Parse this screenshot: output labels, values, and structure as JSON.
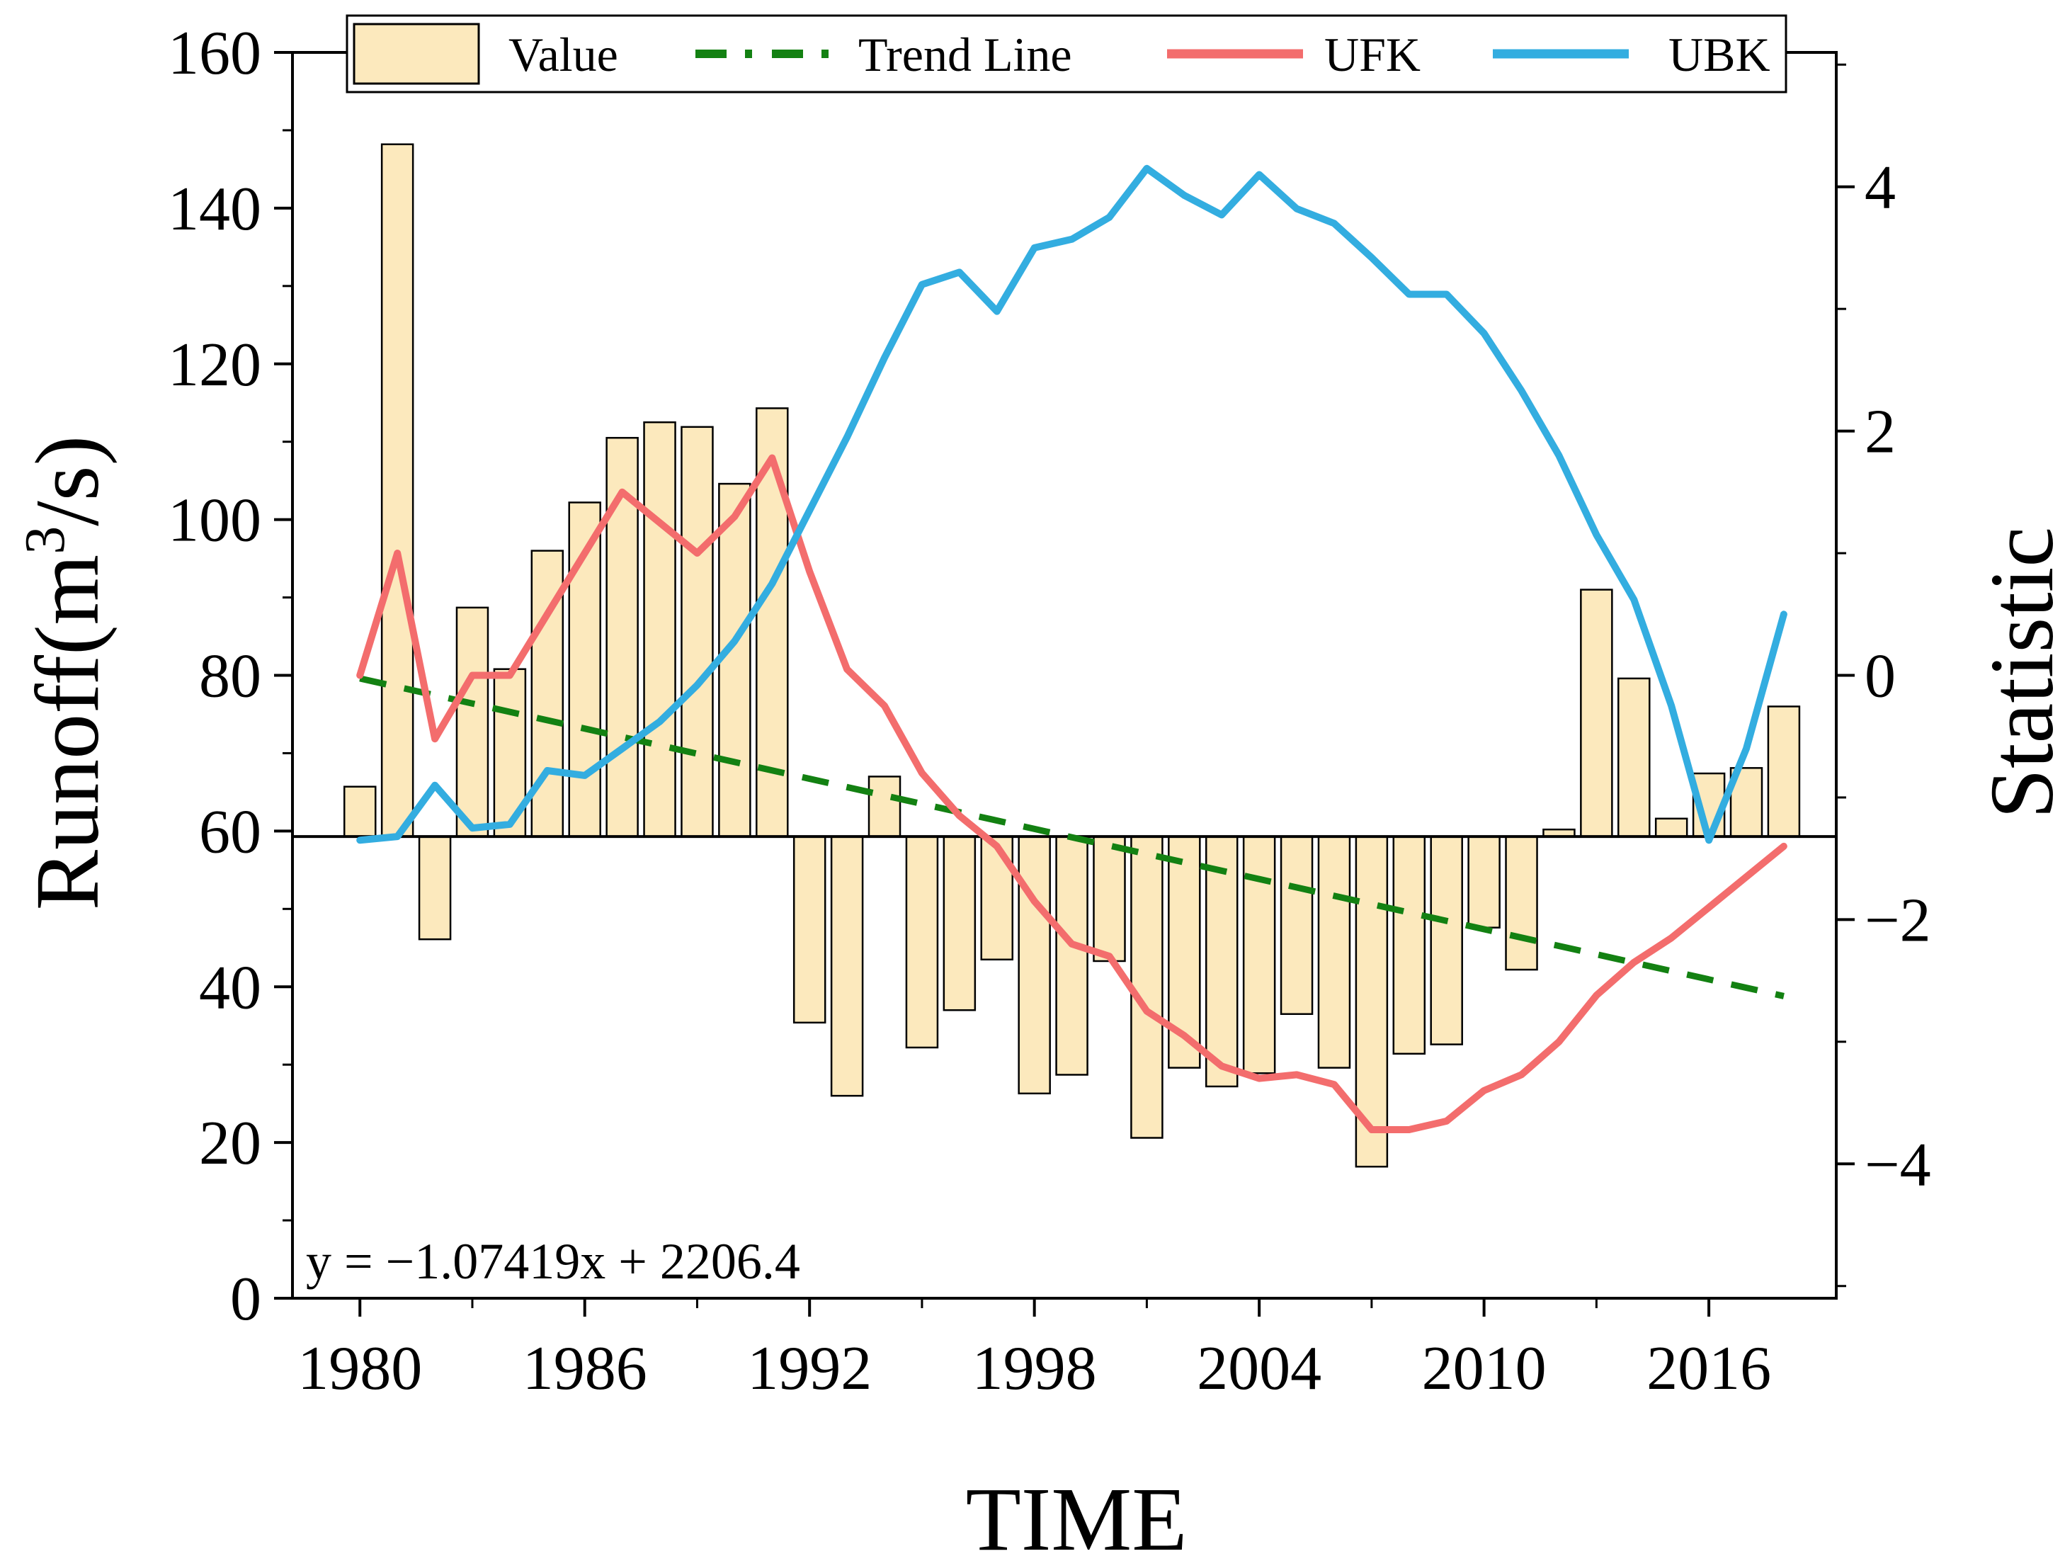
{
  "chart_data": {
    "type": "bar+line",
    "xlabel": "TIME",
    "ylabel": "Runoff(m",
    "ylabel_sup": "3",
    "ylabel_tail": "/s)",
    "y2label": "Statistic",
    "xlim": [
      1978.2,
      2019.4
    ],
    "ylim": [
      0,
      160
    ],
    "y2lim": [
      -5.1,
      5.1
    ],
    "baseline": 59.3,
    "x_ticks": [
      1980,
      1986,
      1992,
      1998,
      2004,
      2010,
      2016
    ],
    "x_tick_labels": [
      "1980",
      "1986",
      "1992",
      "1998",
      "2004",
      "2010",
      "2016"
    ],
    "y_ticks": [
      0,
      20,
      40,
      60,
      80,
      100,
      120,
      140,
      160
    ],
    "y_tick_labels": [
      "0",
      "20",
      "40",
      "60",
      "80",
      "100",
      "120",
      "140",
      "160"
    ],
    "y2_ticks": [
      -4,
      -2,
      0,
      2,
      4
    ],
    "y2_tick_labels": [
      "−4",
      "−2",
      "0",
      "2",
      "4"
    ],
    "years": [
      1980,
      1981,
      1982,
      1983,
      1984,
      1985,
      1986,
      1987,
      1988,
      1989,
      1990,
      1991,
      1992,
      1993,
      1994,
      1995,
      1996,
      1997,
      1998,
      1999,
      2000,
      2001,
      2002,
      2003,
      2004,
      2005,
      2006,
      2007,
      2008,
      2009,
      2010,
      2011,
      2012,
      2013,
      2014,
      2015,
      2016,
      2017,
      2018
    ],
    "series": [
      {
        "name": "Value",
        "type": "bar",
        "color": "#fce9bd",
        "edge": "#000000",
        "values": [
          65.7,
          148.2,
          46.1,
          88.7,
          80.8,
          96.0,
          102.2,
          110.5,
          112.5,
          111.9,
          104.6,
          114.3,
          35.4,
          26.0,
          67.0,
          32.2,
          37.0,
          43.5,
          26.3,
          28.7,
          43.3,
          20.6,
          29.6,
          27.2,
          28.9,
          36.5,
          29.6,
          16.9,
          31.4,
          32.6,
          47.6,
          42.2,
          60.2,
          91.0,
          79.6,
          61.6,
          67.4,
          68.1,
          76.0
        ]
      },
      {
        "name": "Trend Line",
        "type": "line",
        "style": "dashed",
        "color": "#138112",
        "x": [
          1980,
          2018
        ],
        "values": [
          79.6,
          38.8
        ]
      },
      {
        "name": "UFK",
        "type": "line",
        "axis": "right",
        "color": "#f36d6d",
        "values": [
          0.0,
          1.0,
          -0.52,
          0.0,
          0.0,
          0.5,
          1.0,
          1.5,
          1.25,
          1.0,
          1.3,
          1.78,
          0.85,
          0.05,
          -0.25,
          -0.8,
          -1.15,
          -1.4,
          -1.85,
          -2.2,
          -2.3,
          -2.75,
          -2.95,
          -3.2,
          -3.3,
          -3.27,
          -3.35,
          -3.72,
          -3.72,
          -3.65,
          -3.4,
          -3.27,
          -3.0,
          -2.62,
          -2.35,
          -2.15,
          -1.9,
          -1.65,
          -1.4
        ]
      },
      {
        "name": "UBK",
        "type": "line",
        "axis": "right",
        "color": "#33ade0",
        "values": [
          -1.35,
          -1.32,
          -0.9,
          -1.25,
          -1.22,
          -0.78,
          -0.82,
          -0.6,
          -0.38,
          -0.08,
          0.28,
          0.75,
          1.35,
          1.95,
          2.6,
          3.2,
          3.3,
          2.98,
          3.5,
          3.57,
          3.75,
          4.15,
          3.93,
          3.77,
          4.1,
          3.82,
          3.7,
          3.42,
          3.12,
          3.12,
          2.8,
          2.33,
          1.8,
          1.15,
          0.62,
          -0.25,
          -1.35,
          -0.6,
          0.5
        ]
      }
    ],
    "legend": {
      "position": "top",
      "entries": [
        {
          "label": "Value",
          "kind": "bar"
        },
        {
          "label": "Trend Line",
          "kind": "dashed"
        },
        {
          "label": "UFK",
          "kind": "line"
        },
        {
          "label": "UBK",
          "kind": "line"
        }
      ]
    },
    "annotation": "y = −1.07419x + 2206.4"
  }
}
